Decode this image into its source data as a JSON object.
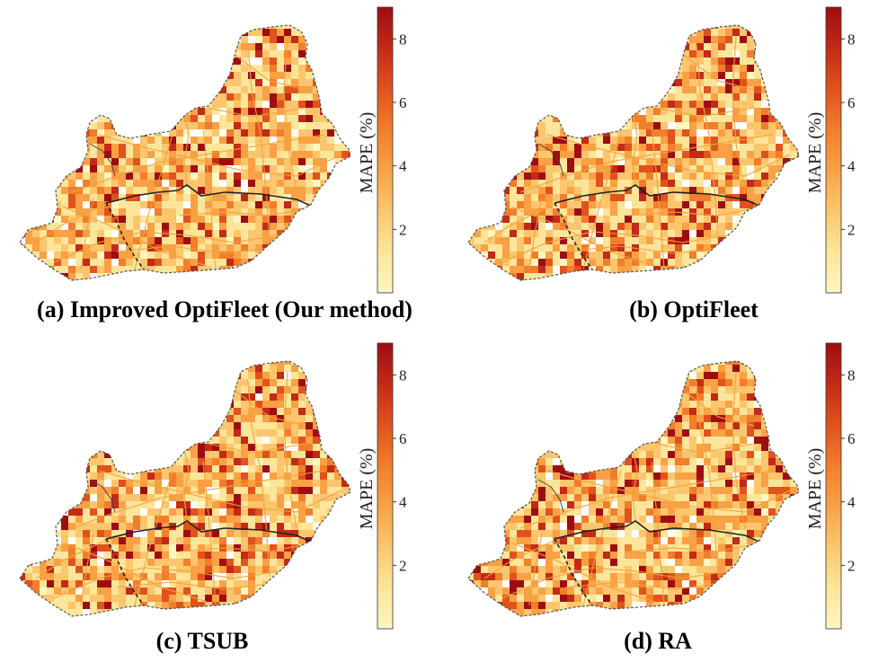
{
  "colorbar": {
    "label": "MAPE (%)",
    "ticks": [
      2,
      4,
      6,
      8
    ],
    "range": [
      0,
      9
    ],
    "colors": [
      "#fff6c0",
      "#fde59a",
      "#fcc66e",
      "#f9a144",
      "#f27d2b",
      "#e0531d",
      "#c32a17",
      "#9e0d14"
    ]
  },
  "panels": [
    {
      "id": "a",
      "caption": "(a) Improved OptiFleet (Our method)",
      "seed": 11,
      "hot": 0.1
    },
    {
      "id": "b",
      "caption": "(b) OptiFleet",
      "seed": 23,
      "hot": 0.13
    },
    {
      "id": "c",
      "caption": "(c) TSUB",
      "seed": 37,
      "hot": 0.12
    },
    {
      "id": "d",
      "caption": "(d) RA",
      "seed": 51,
      "hot": 0.16
    }
  ],
  "icons": {
    "legend": "colorbar-icon"
  }
}
